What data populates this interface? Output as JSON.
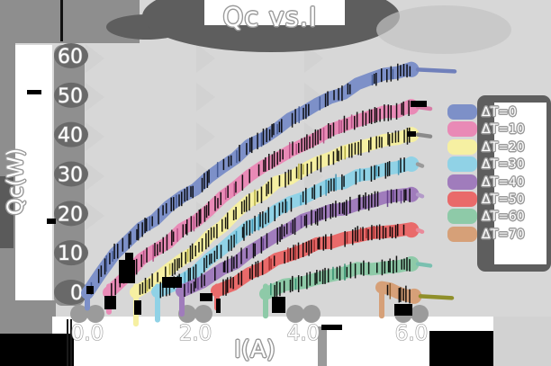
{
  "title": "Qc vs.I",
  "colors": {
    "background": "#d7d7d7",
    "shadow_dark": "#5e5e5e",
    "shadow_mid": "#8f8f8f",
    "text": "#ffffff",
    "text_outline": "#9a9a9a",
    "tick_band": "#8f8f8f",
    "tick_blob": "#696969"
  },
  "chart_data": {
    "type": "line",
    "title": "Qc vs.I",
    "xlabel": "I(A)",
    "ylabel": "Qc(W)",
    "xlim": [
      0,
      6.8
    ],
    "ylim": [
      0,
      60
    ],
    "xticks": [
      0,
      2,
      4,
      6
    ],
    "xtick_labels": [
      "0.0",
      "2.0",
      "4.0",
      "6.0"
    ],
    "yticks": [
      0,
      10,
      20,
      30,
      40,
      50,
      60
    ],
    "ytick_labels": [
      "0",
      "10",
      "20",
      "30",
      "40",
      "50",
      "60"
    ],
    "grid": false,
    "legend_position": "right",
    "style": "thick sketchy bands with black error ticks and drop shadows",
    "series": [
      {
        "name": "ΔT=0",
        "color": "#7d90c8",
        "tick_color": "#3f568f",
        "tail_color": "#7080bb",
        "points": [
          [
            0,
            0
          ],
          [
            0.5,
            10
          ],
          [
            1,
            16
          ],
          [
            1.5,
            21.5
          ],
          [
            2,
            26
          ],
          [
            2.5,
            32
          ],
          [
            3,
            37
          ],
          [
            3.5,
            41.5
          ],
          [
            4,
            45.5
          ],
          [
            4.5,
            49.5
          ],
          [
            5,
            52.5
          ],
          [
            5.5,
            55
          ],
          [
            6,
            56.5
          ]
        ],
        "start_dip": -4,
        "tail_end": 6.8
      },
      {
        "name": "ΔT=10",
        "color": "#e98ab6",
        "tick_color": "#b04a80",
        "tail_color": "#d87ca6",
        "points": [
          [
            0.4,
            0
          ],
          [
            1,
            8
          ],
          [
            1.5,
            13
          ],
          [
            2,
            18
          ],
          [
            2.5,
            24
          ],
          [
            3,
            29.5
          ],
          [
            3.5,
            34
          ],
          [
            4,
            37.5
          ],
          [
            4.5,
            41
          ],
          [
            5,
            43.5
          ],
          [
            5.5,
            45.5
          ],
          [
            6,
            47
          ]
        ],
        "start_dip": -5,
        "tail_end": 6.35
      },
      {
        "name": "ΔT=20",
        "color": "#f6f0a2",
        "tick_color": "#b0a83a",
        "tail_color": "#8a8a8a",
        "points": [
          [
            0.9,
            0
          ],
          [
            1.5,
            5.5
          ],
          [
            2,
            10.5
          ],
          [
            2.5,
            17
          ],
          [
            3,
            23
          ],
          [
            3.5,
            27.5
          ],
          [
            4,
            31
          ],
          [
            4.5,
            34
          ],
          [
            5,
            36.5
          ],
          [
            5.5,
            38.5
          ],
          [
            6,
            40
          ]
        ],
        "start_dip": -8,
        "tail_end": 6.35
      },
      {
        "name": "ΔT=30",
        "color": "#90d2e6",
        "tick_color": "#3a90b0",
        "tail_color": "#9a9a9a",
        "points": [
          [
            1.3,
            0
          ],
          [
            2,
            5
          ],
          [
            2.5,
            11
          ],
          [
            3,
            16.5
          ],
          [
            3.5,
            20.5
          ],
          [
            4,
            24
          ],
          [
            4.5,
            27
          ],
          [
            5,
            29.5
          ],
          [
            5.5,
            31
          ],
          [
            6,
            32.5
          ]
        ],
        "start_dip": -7,
        "tail_end": 6.2
      },
      {
        "name": "ΔT=40",
        "color": "#a07cbc",
        "tick_color": "#5f3a85",
        "tail_color": "#b39ac9",
        "points": [
          [
            1.75,
            0
          ],
          [
            2.5,
            6
          ],
          [
            3,
            10
          ],
          [
            3.5,
            14.5
          ],
          [
            4,
            18
          ],
          [
            4.5,
            20.5
          ],
          [
            5,
            22.5
          ],
          [
            5.5,
            23.8
          ],
          [
            6,
            24.8
          ]
        ],
        "start_dip": -5.5,
        "tail_end": 6.2
      },
      {
        "name": "ΔT=50",
        "color": "#e96a6a",
        "tick_color": "#9c2a2a",
        "tail_color": "#e98a9a",
        "points": [
          [
            2.4,
            0
          ],
          [
            3,
            5
          ],
          [
            3.5,
            8
          ],
          [
            4,
            11
          ],
          [
            4.5,
            13
          ],
          [
            5,
            14.5
          ],
          [
            5.5,
            15.2
          ],
          [
            6,
            15.8
          ]
        ],
        "start_dip": -4,
        "tail_end": 6.2
      },
      {
        "name": "ΔT=60",
        "color": "#8ecaa8",
        "tick_color": "#2a8a6a",
        "tail_color": "#7ac0b0",
        "points": [
          [
            3.3,
            0
          ],
          [
            4,
            2.8
          ],
          [
            4.5,
            4.5
          ],
          [
            5,
            5.8
          ],
          [
            5.5,
            6.6
          ],
          [
            6,
            7.2
          ]
        ],
        "start_dip": -6,
        "tail_end": 6.35
      },
      {
        "name": "ΔT=70",
        "color": "#d6a078",
        "tick_color": "#8a5a2a",
        "tail_color": "#8f8f2a",
        "points": [
          [
            5.45,
            1.5
          ],
          [
            5.75,
            -0.5
          ],
          [
            6.05,
            -1
          ]
        ],
        "start_dip": -6,
        "tail_end": 6.75
      }
    ]
  }
}
